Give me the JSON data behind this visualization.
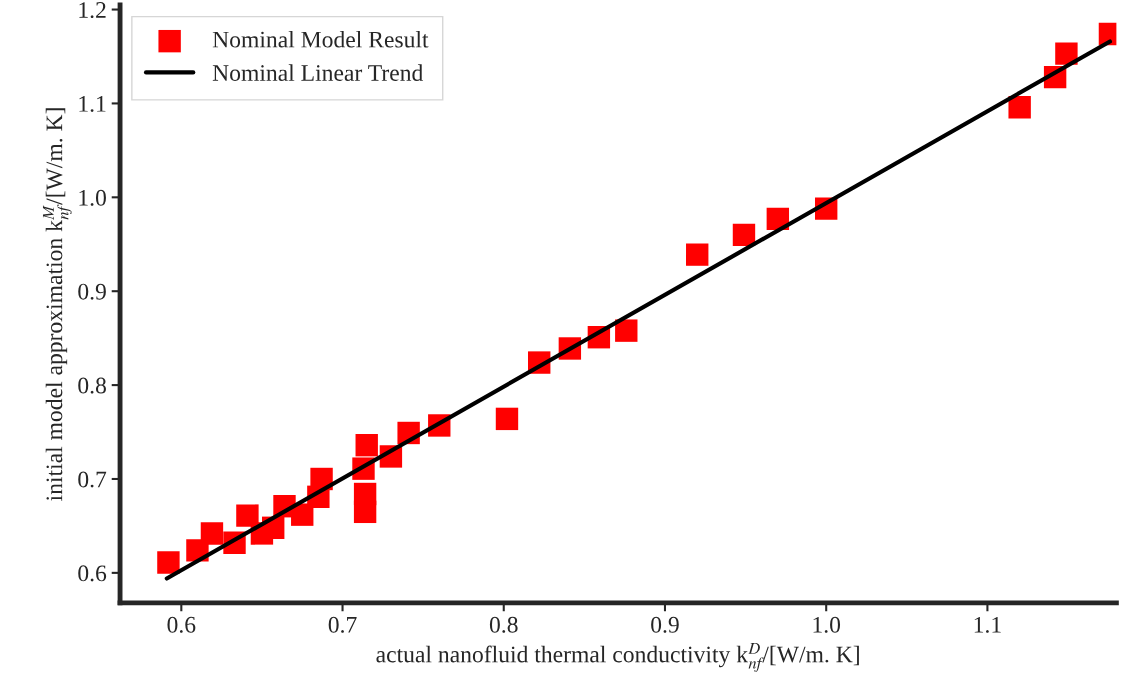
{
  "chart_data": {
    "type": "scatter",
    "xlabel": "actual nanofluid thermal conductivity k$^{D}$$_{nf}$/[W/m. K]",
    "ylabel": "initial model approximation k$^{M}$$_{nf}$/[W/m. K]",
    "xlim": [
      0.562,
      1.18
    ],
    "ylim": [
      0.568,
      1.205
    ],
    "xticks": [
      0.6,
      0.7,
      0.8,
      0.9,
      {
        "value": 1.0,
        "label": "1.0"
      },
      1.1
    ],
    "yticks": [
      0.6,
      0.7,
      0.8,
      0.9,
      {
        "value": 1.0,
        "label": "1.0"
      },
      1.1,
      1.2
    ],
    "legend": "top left",
    "grid": false,
    "marker": "square",
    "series": [
      {
        "name": "Nominal Model Result",
        "color": "#ff0000",
        "x": [
          0.592,
          0.61,
          0.619,
          0.633,
          0.641,
          0.65,
          0.657,
          0.664,
          0.675,
          0.685,
          0.687,
          0.715,
          0.713,
          0.714,
          0.714,
          0.73,
          0.741,
          0.76,
          0.802,
          0.822,
          0.841,
          0.859,
          0.876,
          0.92,
          0.949,
          0.97,
          1.0,
          1.12,
          1.142,
          1.149,
          1.176
        ],
        "values": [
          0.611,
          0.624,
          0.642,
          0.632,
          0.661,
          0.642,
          0.648,
          0.671,
          0.662,
          0.681,
          0.7,
          0.736,
          0.711,
          0.684,
          0.665,
          0.724,
          0.749,
          0.757,
          0.764,
          0.824,
          0.839,
          0.851,
          0.858,
          0.939,
          0.96,
          0.977,
          0.988,
          1.096,
          1.128,
          1.153,
          1.174
        ]
      },
      {
        "name": "Nominal Linear Trend",
        "type": "line",
        "color": "#000000",
        "marker": "none",
        "line_style": "solid",
        "x": [
          0.591,
          1.176
        ],
        "values": [
          0.594,
          1.166
        ]
      }
    ]
  }
}
